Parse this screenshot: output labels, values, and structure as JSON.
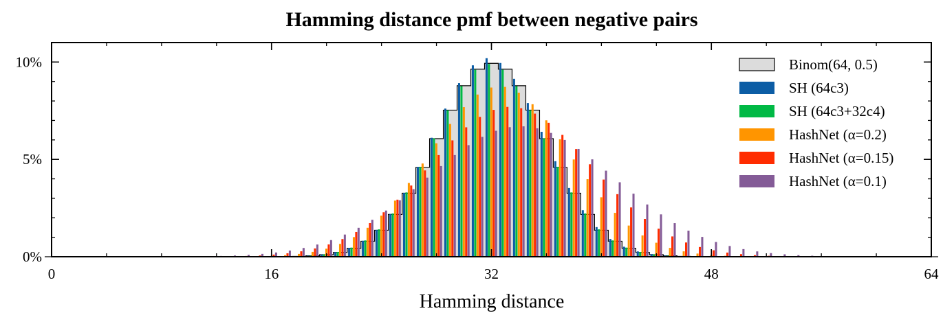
{
  "chart_data": {
    "type": "bar",
    "title": "Hamming distance pmf between negative pairs",
    "xlabel": "Hamming distance",
    "ylabel": "",
    "xlim": [
      0,
      64
    ],
    "ylim": [
      0,
      0.11
    ],
    "x_ticks": [
      0,
      16,
      32,
      48,
      64
    ],
    "x_tick_labels": [
      "0",
      "16",
      "32",
      "48",
      "64"
    ],
    "y_ticks": [
      0,
      0.05,
      0.1
    ],
    "y_tick_labels": [
      "0%",
      "5%",
      "10%"
    ],
    "grid": false,
    "legend_position": "top-right",
    "reference": {
      "name": "Binom(64, 0.5)",
      "n": 64,
      "p": 0.5,
      "fill": "#dcdcdc",
      "edge": "#000000"
    },
    "series": [
      {
        "name": "SH (64c3)",
        "color": "#0c5da5",
        "mean": 32.1,
        "sd": 4.05,
        "peak": 0.102
      },
      {
        "name": "SH (64c3+32c4)",
        "color": "#00b945",
        "mean": 32.0,
        "sd": 4.05,
        "peak": 0.099
      },
      {
        "name": "HashNet (α=0.2)",
        "color": "#ff9500",
        "mean": 32.6,
        "sd": 5.1,
        "peak": 0.0875
      },
      {
        "name": "HashNet (α=0.15)",
        "color": "#ff2c00",
        "mean": 33.2,
        "sd": 5.9,
        "peak": 0.077
      },
      {
        "name": "HashNet (α=0.1)",
        "color": "#845b97",
        "mean": 33.8,
        "sd": 6.8,
        "peak": 0.067
      }
    ]
  }
}
